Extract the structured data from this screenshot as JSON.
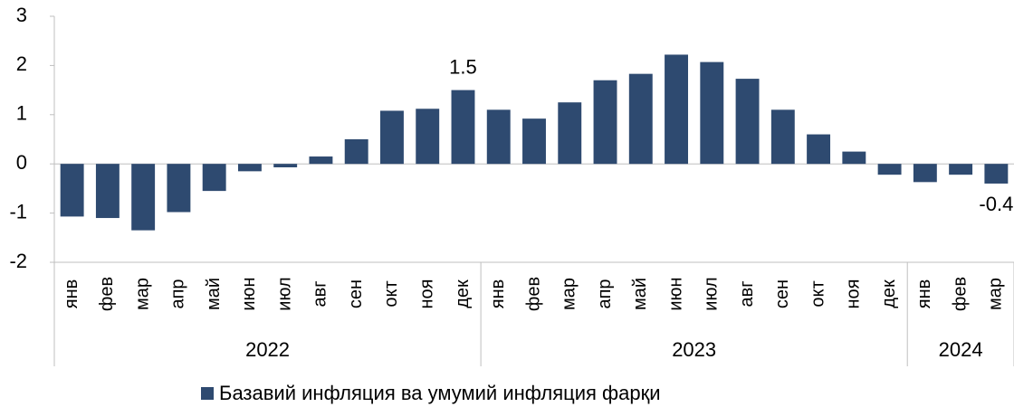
{
  "chart_data": {
    "type": "bar",
    "groups": [
      {
        "name": "2022",
        "categories": [
          "янв",
          "фев",
          "мар",
          "апр",
          "май",
          "июн",
          "июл",
          "авг",
          "сен",
          "окт",
          "ноя",
          "дек"
        ]
      },
      {
        "name": "2023",
        "categories": [
          "янв",
          "фев",
          "мар",
          "апр",
          "май",
          "июн",
          "июл",
          "авг",
          "сен",
          "окт",
          "ноя",
          "дек"
        ]
      },
      {
        "name": "2024",
        "categories": [
          "янв",
          "фев",
          "мар"
        ]
      }
    ],
    "series": [
      {
        "name": "Базавий инфляция ва умумий инфляция фарқи",
        "color": "#2e4a70",
        "values": [
          -1.07,
          -1.1,
          -1.35,
          -0.98,
          -0.55,
          -0.15,
          -0.07,
          0.15,
          0.5,
          1.08,
          1.12,
          1.5,
          1.1,
          0.92,
          1.25,
          1.7,
          1.83,
          2.22,
          2.07,
          1.73,
          1.1,
          0.6,
          0.25,
          -0.22,
          -0.37,
          -0.22,
          -0.4
        ],
        "value_labels": [
          null,
          null,
          null,
          null,
          null,
          null,
          null,
          null,
          null,
          null,
          null,
          "1.5",
          null,
          null,
          null,
          null,
          null,
          null,
          null,
          null,
          null,
          null,
          null,
          null,
          null,
          null,
          "-0.4"
        ]
      }
    ],
    "ylim": [
      -2,
      3
    ],
    "yticks": [
      -2,
      -1,
      0,
      1,
      2,
      3
    ],
    "legend": "bottom"
  }
}
